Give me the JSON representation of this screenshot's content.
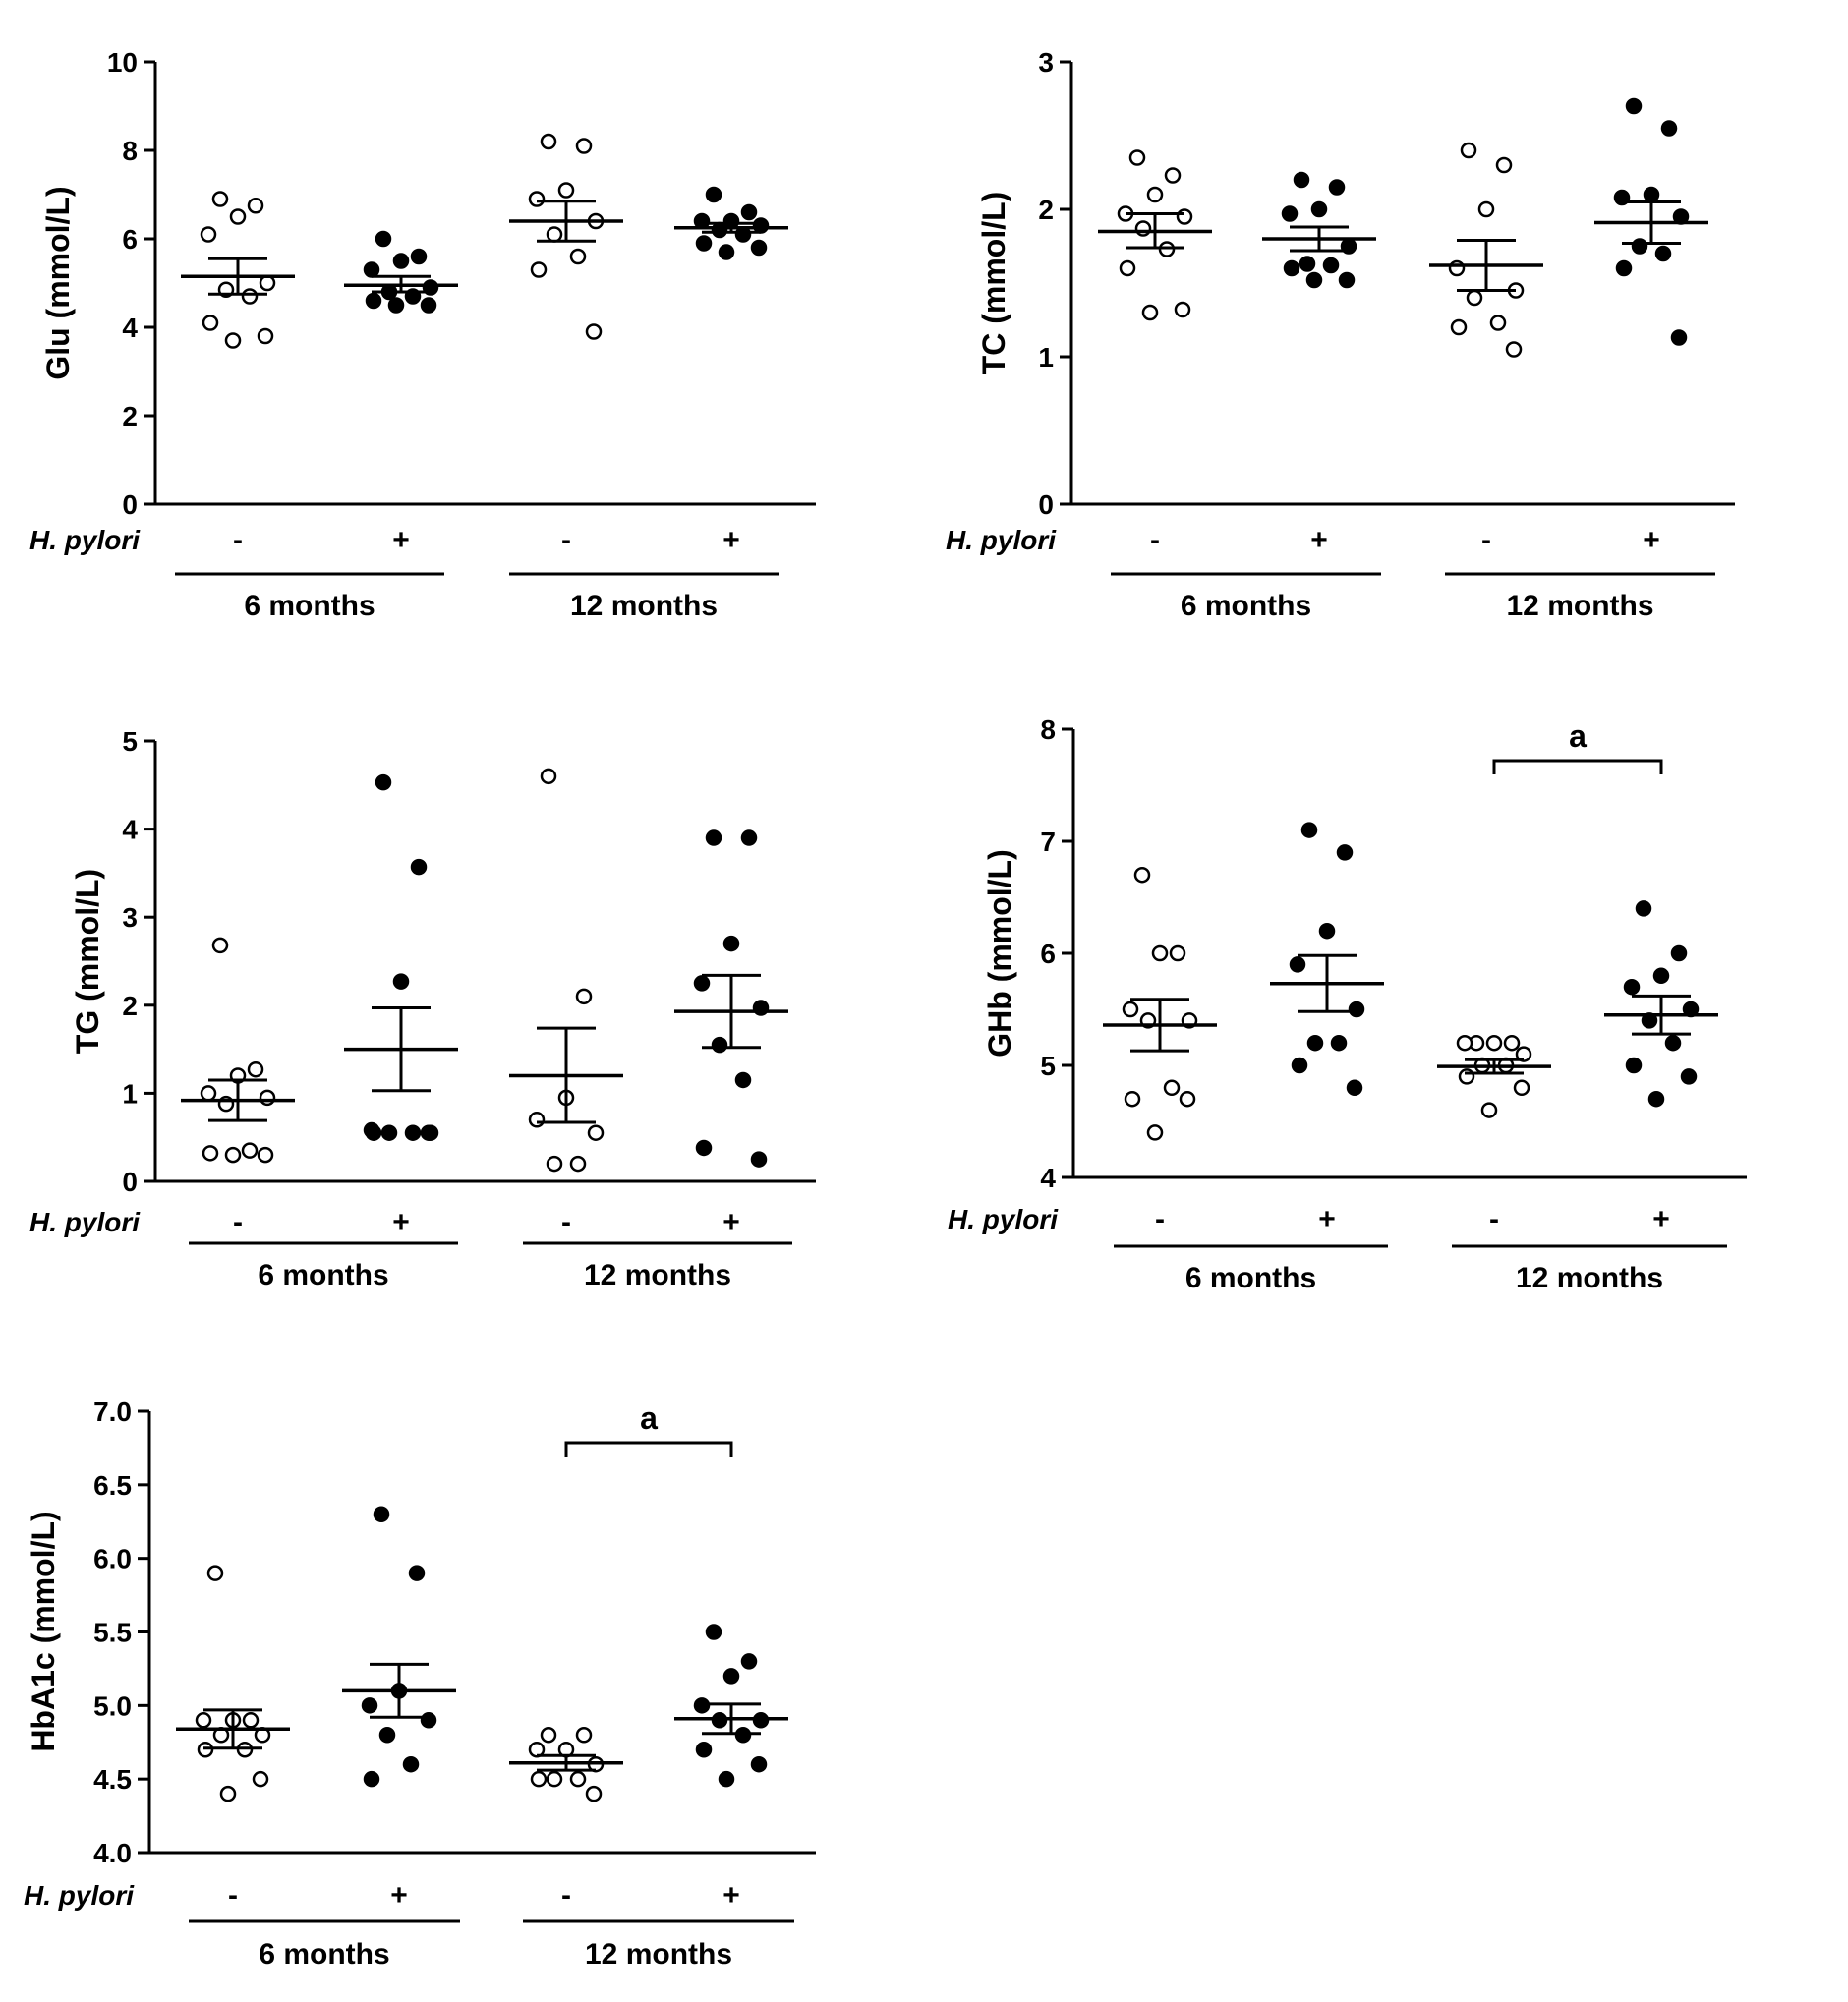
{
  "infection_label": "H. pylori",
  "chart_data": [
    {
      "id": "glu",
      "type": "scatter",
      "ylabel": "Glu (mmol/L)",
      "ylim": [
        0,
        10
      ],
      "yticks": [
        0,
        2,
        4,
        6,
        8,
        10
      ],
      "ytick_labels": [
        "0",
        "2",
        "4",
        "6",
        "8",
        "10"
      ],
      "categories": [
        "-",
        "+",
        "-",
        "+"
      ],
      "periods": [
        "6 months",
        "12 months"
      ],
      "significance": null,
      "groups": [
        {
          "infected": false,
          "period": "6 months",
          "mean": 5.15,
          "sem_low": 4.75,
          "sem_high": 5.55,
          "points": [
            6.9,
            6.75,
            6.5,
            6.1,
            5.0,
            4.85,
            4.7,
            4.1,
            3.8,
            3.7
          ]
        },
        {
          "infected": true,
          "period": "6 months",
          "mean": 4.95,
          "sem_low": 4.8,
          "sem_high": 5.15,
          "points": [
            6.0,
            5.6,
            5.5,
            5.3,
            4.9,
            4.8,
            4.7,
            4.6,
            4.5,
            4.5
          ]
        },
        {
          "infected": false,
          "period": "12 months",
          "mean": 6.4,
          "sem_low": 5.95,
          "sem_high": 6.85,
          "points": [
            8.2,
            8.1,
            7.1,
            6.9,
            6.4,
            6.1,
            5.6,
            5.3,
            3.9
          ]
        },
        {
          "infected": true,
          "period": "12 months",
          "mean": 6.25,
          "sem_low": 6.15,
          "sem_high": 6.35,
          "points": [
            7.0,
            6.6,
            6.4,
            6.4,
            6.3,
            6.2,
            6.1,
            5.9,
            5.8,
            5.7
          ]
        }
      ]
    },
    {
      "id": "tc",
      "type": "scatter",
      "ylabel": "TC (mmol/L)",
      "ylim": [
        0,
        3
      ],
      "yticks": [
        0,
        1,
        2,
        3
      ],
      "ytick_labels": [
        "0",
        "1",
        "2",
        "3"
      ],
      "categories": [
        "-",
        "+",
        "-",
        "+"
      ],
      "periods": [
        "6 months",
        "12 months"
      ],
      "significance": null,
      "groups": [
        {
          "infected": false,
          "period": "6 months",
          "mean": 1.85,
          "sem_low": 1.74,
          "sem_high": 1.97,
          "points": [
            2.35,
            2.23,
            2.1,
            1.97,
            1.95,
            1.87,
            1.73,
            1.6,
            1.32,
            1.3
          ]
        },
        {
          "infected": true,
          "period": "6 months",
          "mean": 1.8,
          "sem_low": 1.72,
          "sem_high": 1.88,
          "points": [
            2.2,
            2.15,
            2.0,
            1.97,
            1.75,
            1.63,
            1.62,
            1.6,
            1.52,
            1.52
          ]
        },
        {
          "infected": false,
          "period": "12 months",
          "mean": 1.62,
          "sem_low": 1.45,
          "sem_high": 1.79,
          "points": [
            2.4,
            2.3,
            2.0,
            1.6,
            1.45,
            1.4,
            1.23,
            1.2,
            1.05
          ]
        },
        {
          "infected": true,
          "period": "12 months",
          "mean": 1.91,
          "sem_low": 1.77,
          "sem_high": 2.05,
          "points": [
            2.7,
            2.55,
            2.1,
            2.08,
            1.95,
            1.75,
            1.7,
            1.6,
            1.13
          ]
        }
      ]
    },
    {
      "id": "tg",
      "type": "scatter",
      "ylabel": "TG (mmol/L)",
      "ylim": [
        0,
        5
      ],
      "yticks": [
        0,
        1,
        2,
        3,
        4,
        5
      ],
      "ytick_labels": [
        "0",
        "1",
        "2",
        "3",
        "4",
        "5"
      ],
      "categories": [
        "-",
        "+",
        "-",
        "+"
      ],
      "periods": [
        "6 months",
        "12 months"
      ],
      "significance": null,
      "groups": [
        {
          "infected": false,
          "period": "6 months",
          "mean": 0.92,
          "sem_low": 0.69,
          "sem_high": 1.15,
          "points": [
            2.68,
            1.27,
            1.2,
            1.0,
            0.95,
            0.88,
            0.35,
            0.32,
            0.3,
            0.3
          ]
        },
        {
          "infected": true,
          "period": "6 months",
          "mean": 1.5,
          "sem_low": 1.03,
          "sem_high": 1.97,
          "points": [
            4.53,
            3.57,
            2.27,
            0.58,
            0.55,
            0.55,
            0.55,
            0.55,
            0.55
          ]
        },
        {
          "infected": false,
          "period": "12 months",
          "mean": 1.2,
          "sem_low": 0.67,
          "sem_high": 1.74,
          "points": [
            4.6,
            2.1,
            0.95,
            0.7,
            0.55,
            0.2,
            0.2
          ]
        },
        {
          "infected": true,
          "period": "12 months",
          "mean": 1.93,
          "sem_low": 1.52,
          "sem_high": 2.34,
          "points": [
            3.9,
            3.9,
            2.7,
            2.25,
            1.97,
            1.55,
            1.15,
            0.38,
            0.25
          ]
        }
      ]
    },
    {
      "id": "ghb",
      "type": "scatter",
      "ylabel": "GHb (mmol/L)",
      "ylim": [
        4,
        8
      ],
      "yticks": [
        4,
        5,
        6,
        7,
        8
      ],
      "ytick_labels": [
        "4",
        "5",
        "6",
        "7",
        "8"
      ],
      "categories": [
        "-",
        "+",
        "-",
        "+"
      ],
      "periods": [
        "6 months",
        "12 months"
      ],
      "significance": {
        "from": 2,
        "to": 3,
        "label": "a"
      },
      "groups": [
        {
          "infected": false,
          "period": "6 months",
          "mean": 5.36,
          "sem_low": 5.13,
          "sem_high": 5.59,
          "points": [
            6.7,
            6.0,
            6.0,
            5.5,
            5.4,
            5.4,
            4.8,
            4.7,
            4.7,
            4.4
          ]
        },
        {
          "infected": true,
          "period": "6 months",
          "mean": 5.73,
          "sem_low": 5.48,
          "sem_high": 5.98,
          "points": [
            7.1,
            6.9,
            6.2,
            5.9,
            5.5,
            5.2,
            5.2,
            5.0,
            4.8
          ]
        },
        {
          "infected": false,
          "period": "12 months",
          "mean": 4.99,
          "sem_low": 4.93,
          "sem_high": 5.05,
          "points": [
            5.2,
            5.2,
            5.2,
            5.2,
            5.1,
            5.0,
            5.0,
            4.9,
            4.8,
            4.6
          ]
        },
        {
          "infected": true,
          "period": "12 months",
          "mean": 5.45,
          "sem_low": 5.28,
          "sem_high": 5.62,
          "points": [
            6.4,
            6.0,
            5.8,
            5.7,
            5.5,
            5.4,
            5.2,
            5.0,
            4.9,
            4.7
          ]
        }
      ]
    },
    {
      "id": "hba1c",
      "type": "scatter",
      "ylabel": "HbA1c (mmol/L)",
      "ylim": [
        4.0,
        7.0
      ],
      "yticks": [
        4.0,
        4.5,
        5.0,
        5.5,
        6.0,
        6.5,
        7.0
      ],
      "ytick_labels": [
        "4.0",
        "4.5",
        "5.0",
        "5.5",
        "6.0",
        "6.5",
        "7.0"
      ],
      "categories": [
        "-",
        "+",
        "-",
        "+"
      ],
      "periods": [
        "6 months",
        "12 months"
      ],
      "significance": {
        "from": 2,
        "to": 3,
        "label": "a"
      },
      "groups": [
        {
          "infected": false,
          "period": "6 months",
          "mean": 4.84,
          "sem_low": 4.71,
          "sem_high": 4.97,
          "points": [
            5.9,
            4.9,
            4.9,
            4.9,
            4.8,
            4.8,
            4.7,
            4.7,
            4.5,
            4.4
          ]
        },
        {
          "infected": true,
          "period": "6 months",
          "mean": 5.1,
          "sem_low": 4.92,
          "sem_high": 5.28,
          "points": [
            6.3,
            5.9,
            5.1,
            5.0,
            4.9,
            4.8,
            4.6,
            4.5
          ]
        },
        {
          "infected": false,
          "period": "12 months",
          "mean": 4.61,
          "sem_low": 4.56,
          "sem_high": 4.66,
          "points": [
            4.8,
            4.8,
            4.7,
            4.7,
            4.6,
            4.5,
            4.5,
            4.5,
            4.4
          ]
        },
        {
          "infected": true,
          "period": "12 months",
          "mean": 4.91,
          "sem_low": 4.81,
          "sem_high": 5.01,
          "points": [
            5.5,
            5.3,
            5.2,
            5.0,
            4.9,
            4.9,
            4.8,
            4.7,
            4.6,
            4.5
          ]
        }
      ]
    }
  ]
}
